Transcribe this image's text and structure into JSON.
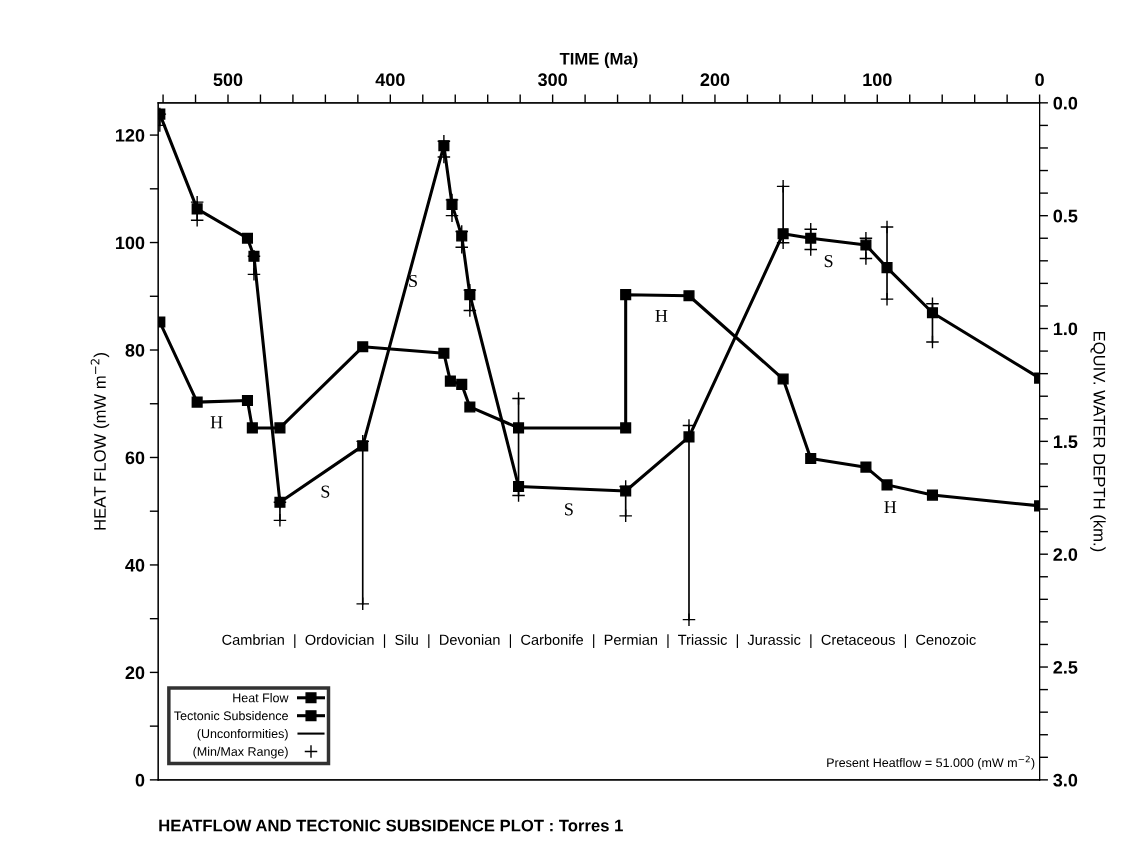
{
  "chart_data": {
    "type": "line",
    "title": "HEATFLOW AND TECTONIC SUBSIDENCE PLOT : Torres 1",
    "xlabel": "TIME (Ma)",
    "ylabel": "HEAT FLOW (mW m$^{−2}$)",
    "y2label": "EQUIV. WATER DEPTH (km.)",
    "xlim": [
      543,
      0
    ],
    "xticks": [
      {
        "value": 540,
        "label": null
      },
      {
        "value": 520,
        "label": null
      },
      500,
      {
        "value": 480,
        "label": null
      },
      {
        "value": 460,
        "label": null
      },
      {
        "value": 440,
        "label": null
      },
      {
        "value": 420,
        "label": null
      },
      400,
      {
        "value": 380,
        "label": null
      },
      {
        "value": 360,
        "label": null
      },
      {
        "value": 340,
        "label": null
      },
      {
        "value": 320,
        "label": null
      },
      300,
      {
        "value": 280,
        "label": null
      },
      {
        "value": 260,
        "label": null
      },
      {
        "value": 240,
        "label": null
      },
      {
        "value": 220,
        "label": null
      },
      200,
      {
        "value": 180,
        "label": null
      },
      {
        "value": 160,
        "label": null
      },
      {
        "value": 140,
        "label": null
      },
      {
        "value": 120,
        "label": null
      },
      100,
      {
        "value": 80,
        "label": null
      },
      {
        "value": 60,
        "label": null
      },
      {
        "value": 40,
        "label": null
      },
      {
        "value": 20,
        "label": null
      },
      0
    ],
    "ylim": [
      0,
      126
    ],
    "yticks": [
      0,
      {
        "value": 10,
        "label": null
      },
      20,
      {
        "value": 30,
        "label": null
      },
      40,
      {
        "value": 50,
        "label": null
      },
      60,
      {
        "value": 70,
        "label": null
      },
      80,
      {
        "value": 90,
        "label": null
      },
      100,
      {
        "value": 110,
        "label": null
      },
      120
    ],
    "y2lim": [
      3.0,
      0.0
    ],
    "y2ticks": [
      {
        "value": 0,
        "label": "0.0"
      },
      {
        "value": 0.1,
        "label": null
      },
      {
        "value": 0.2,
        "label": null
      },
      {
        "value": 0.3,
        "label": null
      },
      {
        "value": 0.4,
        "label": null
      },
      0.5,
      {
        "value": 0.6,
        "label": null
      },
      {
        "value": 0.7,
        "label": null
      },
      {
        "value": 0.8,
        "label": null
      },
      {
        "value": 0.9,
        "label": null
      },
      {
        "value": 1,
        "label": "1.0"
      },
      {
        "value": 1.1,
        "label": null
      },
      {
        "value": 1.2,
        "label": null
      },
      {
        "value": 1.3,
        "label": null
      },
      {
        "value": 1.4,
        "label": null
      },
      1.5,
      {
        "value": 1.6,
        "label": null
      },
      {
        "value": 1.7,
        "label": null
      },
      {
        "value": 1.8,
        "label": null
      },
      {
        "value": 1.9,
        "label": null
      },
      {
        "value": 2,
        "label": "2.0"
      },
      {
        "value": 2.1,
        "label": null
      },
      {
        "value": 2.2,
        "label": null
      },
      {
        "value": 2.3,
        "label": null
      },
      {
        "value": 2.4,
        "label": null
      },
      2.5,
      {
        "value": 2.6,
        "label": null
      },
      {
        "value": 2.7,
        "label": null
      },
      {
        "value": 2.8,
        "label": null
      },
      {
        "value": 2.9,
        "label": null
      },
      {
        "value": 3,
        "label": "3.0"
      }
    ],
    "marker": "square",
    "line_style": "solid",
    "grid": false,
    "legend": "bottom left",
    "series": [
      {
        "name": "Heat Flow",
        "color": "#000000",
        "x": [
          542,
          519,
          488,
          485,
          468,
          417,
          367,
          363,
          356,
          351,
          321,
          255,
          255,
          216,
          158,
          141,
          107,
          94,
          66,
          0
        ],
        "values": [
          85.2,
          70.3,
          70.6,
          65.5,
          65.5,
          80.6,
          79.4,
          74.2,
          73.6,
          69.4,
          65.5,
          65.5,
          90.3,
          90.1,
          74.6,
          59.8,
          58.2,
          54.9,
          53.0,
          51.0
        ]
      },
      {
        "name": "Tectonic Subsidence",
        "color": "#000000",
        "axis": "y2",
        "x": [
          542,
          519,
          488,
          484,
          468,
          417,
          367,
          362,
          356,
          351,
          321,
          255,
          216,
          158,
          141,
          107,
          94,
          66,
          0
        ],
        "values": [
          0.05,
          0.47,
          0.6,
          0.68,
          1.77,
          1.52,
          0.19,
          0.45,
          0.59,
          0.85,
          1.7,
          1.72,
          1.48,
          0.58,
          0.6,
          0.63,
          0.73,
          0.93,
          1.22
        ],
        "errors": [
          [
            0.05,
            0.1
          ],
          [
            0.44,
            0.52
          ],
          null,
          [
            0.68,
            0.76
          ],
          [
            1.77,
            1.85
          ],
          [
            1.5,
            2.22
          ],
          [
            0.17,
            0.24
          ],
          [
            0.43,
            0.5
          ],
          [
            0.57,
            0.64
          ],
          [
            0.83,
            0.92
          ],
          [
            1.31,
            1.74
          ],
          [
            1.7,
            1.83
          ],
          [
            1.43,
            2.29
          ],
          [
            0.37,
            0.62
          ],
          [
            0.56,
            0.65
          ],
          [
            0.6,
            0.69
          ],
          [
            0.55,
            0.87
          ],
          [
            0.89,
            1.06
          ],
          null
        ]
      }
    ],
    "annotations": [
      "Present Heatflow = 51.000 (mW m$^{−2}$)",
      "(Unconformities)",
      "(Min/Max Range)",
      "Cambrian  |  Ordovician  |  Silu  |  Devonian  |  Carbonife  |  Permian  |  Triassic  |  Jurassic  |  Cretaceous  |  Cenozoic",
      {
        "text": "H",
        "x": 507,
        "y": 70.4
      },
      {
        "text": "H",
        "x": 233,
        "y": 90.2
      },
      {
        "text": "H",
        "x": 92,
        "y": 54.6
      },
      {
        "text": "S",
        "x": 386,
        "y": 96.7
      },
      {
        "text": "S",
        "x": 440,
        "y": 57.5
      },
      {
        "text": "S",
        "x": 290,
        "y": 54.2
      },
      {
        "text": "S",
        "x": 130,
        "y": 100.4
      }
    ]
  }
}
